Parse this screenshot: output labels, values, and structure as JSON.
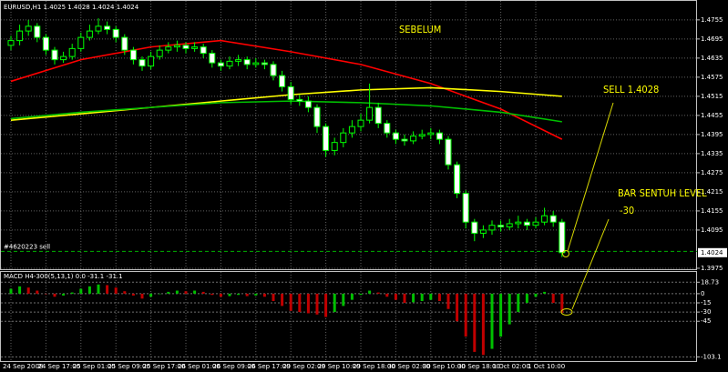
{
  "chart_data": {
    "type": "candlestick",
    "header": "EURUSD,H1  1.4025 1.4028 1.4024 1.4024",
    "categories": [
      "24 Sep 2008",
      null,
      null,
      null,
      "24 Sep 17:00",
      null,
      null,
      null,
      "25 Sep 01:00",
      null,
      null,
      null,
      "25 Sep 09:00",
      null,
      null,
      null,
      "25 Sep 17:00",
      null,
      null,
      null,
      "26 Sep 01:00",
      null,
      null,
      null,
      "26 Sep 09:00",
      null,
      null,
      null,
      "26 Sep 17:00",
      null,
      null,
      null,
      "29 Sep 02:00",
      null,
      null,
      null,
      "29 Sep 10:00",
      null,
      null,
      null,
      "29 Sep 18:00",
      null,
      null,
      null,
      "30 Sep 02:00",
      null,
      null,
      null,
      "30 Sep 10:00",
      null,
      null,
      null,
      "30 Sep 18:00",
      null,
      null,
      null,
      "1 Oct 02:00",
      null,
      null,
      null,
      "1 Oct 10:00",
      null,
      null,
      null
    ],
    "open": [
      1.4675,
      1.469,
      1.472,
      1.4735,
      1.47,
      1.466,
      1.463,
      1.464,
      1.4665,
      1.47,
      1.472,
      1.4735,
      1.4725,
      1.47,
      1.466,
      1.463,
      1.461,
      1.464,
      1.466,
      1.467,
      1.4675,
      1.4665,
      1.467,
      1.465,
      1.462,
      1.461,
      1.4625,
      1.463,
      1.4615,
      1.462,
      1.4615,
      1.458,
      1.4545,
      1.4505,
      1.45,
      1.448,
      1.442,
      1.4345,
      1.437,
      1.44,
      1.442,
      1.444,
      1.448,
      1.443,
      1.44,
      1.438,
      1.4375,
      1.439,
      1.4395,
      1.44,
      1.438,
      1.43,
      1.421,
      1.412,
      1.4085,
      1.4095,
      1.411,
      1.4105,
      1.4115,
      1.412,
      1.411,
      1.412,
      1.414,
      1.412
    ],
    "high": [
      1.4705,
      1.474,
      1.4755,
      1.4745,
      1.471,
      1.467,
      1.4655,
      1.468,
      1.4715,
      1.474,
      1.476,
      1.475,
      1.4735,
      1.471,
      1.467,
      1.464,
      1.4655,
      1.4675,
      1.4685,
      1.469,
      1.4685,
      1.4685,
      1.468,
      1.466,
      1.463,
      1.464,
      1.4645,
      1.464,
      1.4635,
      1.463,
      1.4625,
      1.4595,
      1.456,
      1.452,
      1.4515,
      1.449,
      1.443,
      1.4385,
      1.4415,
      1.444,
      1.446,
      1.4555,
      1.4495,
      1.444,
      1.441,
      1.4395,
      1.4405,
      1.441,
      1.4415,
      1.441,
      1.439,
      1.431,
      1.422,
      1.413,
      1.411,
      1.4125,
      1.4125,
      1.413,
      1.414,
      1.413,
      1.4135,
      1.4165,
      1.4155,
      1.413
    ],
    "low": [
      1.466,
      1.4675,
      1.4705,
      1.4685,
      1.4645,
      1.4615,
      1.462,
      1.463,
      1.4655,
      1.469,
      1.471,
      1.471,
      1.4685,
      1.4645,
      1.4615,
      1.4595,
      1.46,
      1.463,
      1.465,
      1.4655,
      1.465,
      1.4655,
      1.4635,
      1.4605,
      1.4595,
      1.46,
      1.461,
      1.46,
      1.4605,
      1.46,
      1.4565,
      1.453,
      1.449,
      1.4485,
      1.4465,
      1.44,
      1.4325,
      1.433,
      1.4355,
      1.4385,
      1.4405,
      1.443,
      1.4415,
      1.4385,
      1.4365,
      1.436,
      1.4365,
      1.438,
      1.438,
      1.4365,
      1.4285,
      1.4195,
      1.41,
      1.406,
      1.407,
      1.408,
      1.409,
      1.4095,
      1.41,
      1.4095,
      1.41,
      1.411,
      1.4105,
      1.401
    ],
    "close": [
      1.469,
      1.472,
      1.4735,
      1.47,
      1.466,
      1.463,
      1.464,
      1.4665,
      1.47,
      1.472,
      1.4735,
      1.4725,
      1.47,
      1.466,
      1.463,
      1.461,
      1.464,
      1.466,
      1.467,
      1.4675,
      1.4665,
      1.467,
      1.465,
      1.462,
      1.461,
      1.4625,
      1.463,
      1.4615,
      1.462,
      1.4615,
      1.458,
      1.4545,
      1.4505,
      1.45,
      1.448,
      1.442,
      1.4345,
      1.437,
      1.44,
      1.442,
      1.444,
      1.448,
      1.443,
      1.44,
      1.438,
      1.4375,
      1.439,
      1.4395,
      1.44,
      1.438,
      1.43,
      1.421,
      1.412,
      1.4085,
      1.4095,
      1.411,
      1.4105,
      1.4115,
      1.412,
      1.411,
      1.412,
      1.414,
      1.412,
      1.4024
    ],
    "bull_color": "#000000",
    "bear_color": "#ffffff",
    "candle_outline": "#00ff00",
    "ylim": [
      1.3972,
      1.4806
    ],
    "yticks": [
      1.4755,
      1.4695,
      1.4635,
      1.4575,
      1.4515,
      1.4455,
      1.4395,
      1.4335,
      1.4275,
      1.4215,
      1.4155,
      1.4095,
      1.3975
    ],
    "current_price": 1.4024,
    "order_line": {
      "value": 1.4028,
      "label": "#4620223 sell"
    },
    "ma_lines": [
      {
        "color": "#ff0000",
        "x": [
          0,
          8,
          16,
          24,
          32,
          40,
          48,
          56,
          63
        ],
        "values": [
          1.4562,
          1.463,
          1.467,
          1.469,
          1.4655,
          1.4615,
          1.4555,
          1.4475,
          1.438
        ]
      },
      {
        "color": "#ffff00",
        "x": [
          0,
          8,
          16,
          24,
          32,
          40,
          48,
          56,
          63
        ],
        "values": [
          1.444,
          1.446,
          1.448,
          1.45,
          1.452,
          1.4535,
          1.4542,
          1.453,
          1.4515
        ]
      },
      {
        "color": "#00c000",
        "x": [
          0,
          8,
          16,
          24,
          32,
          40,
          48,
          56,
          63
        ],
        "values": [
          1.4445,
          1.4465,
          1.448,
          1.4495,
          1.45,
          1.4495,
          1.4485,
          1.4465,
          1.4435
        ]
      }
    ],
    "grid": true,
    "annotations": [
      "SEBELUM",
      "SELL 1.4028",
      "BAR SENTUH LEVEL",
      "-30"
    ],
    "indicator": {
      "type": "histogram",
      "title": "MACD H4-300(5,13,1) 0.0 -31.1 -31.1",
      "values": [
        8,
        12,
        10,
        5,
        0,
        -5,
        -3,
        2,
        8,
        12,
        15,
        14,
        10,
        4,
        -3,
        -8,
        -5,
        0,
        3,
        5,
        4,
        5,
        3,
        -2,
        -5,
        -4,
        -2,
        -4,
        -3,
        -5,
        -12,
        -20,
        -28,
        -30,
        -32,
        -34,
        -38,
        -30,
        -20,
        -10,
        -2,
        5,
        2,
        -5,
        -10,
        -15,
        -14,
        -12,
        -10,
        -12,
        -25,
        -45,
        -70,
        -95,
        -100,
        -90,
        -70,
        -50,
        -30,
        -15,
        -5,
        3,
        -15,
        -31.1
      ],
      "up_color": "#00c000",
      "down_color": "#c00000",
      "ylim": [
        -110,
        34
      ],
      "yticks": [
        18.73,
        0,
        -15,
        -30,
        -45,
        -103.1
      ]
    }
  }
}
